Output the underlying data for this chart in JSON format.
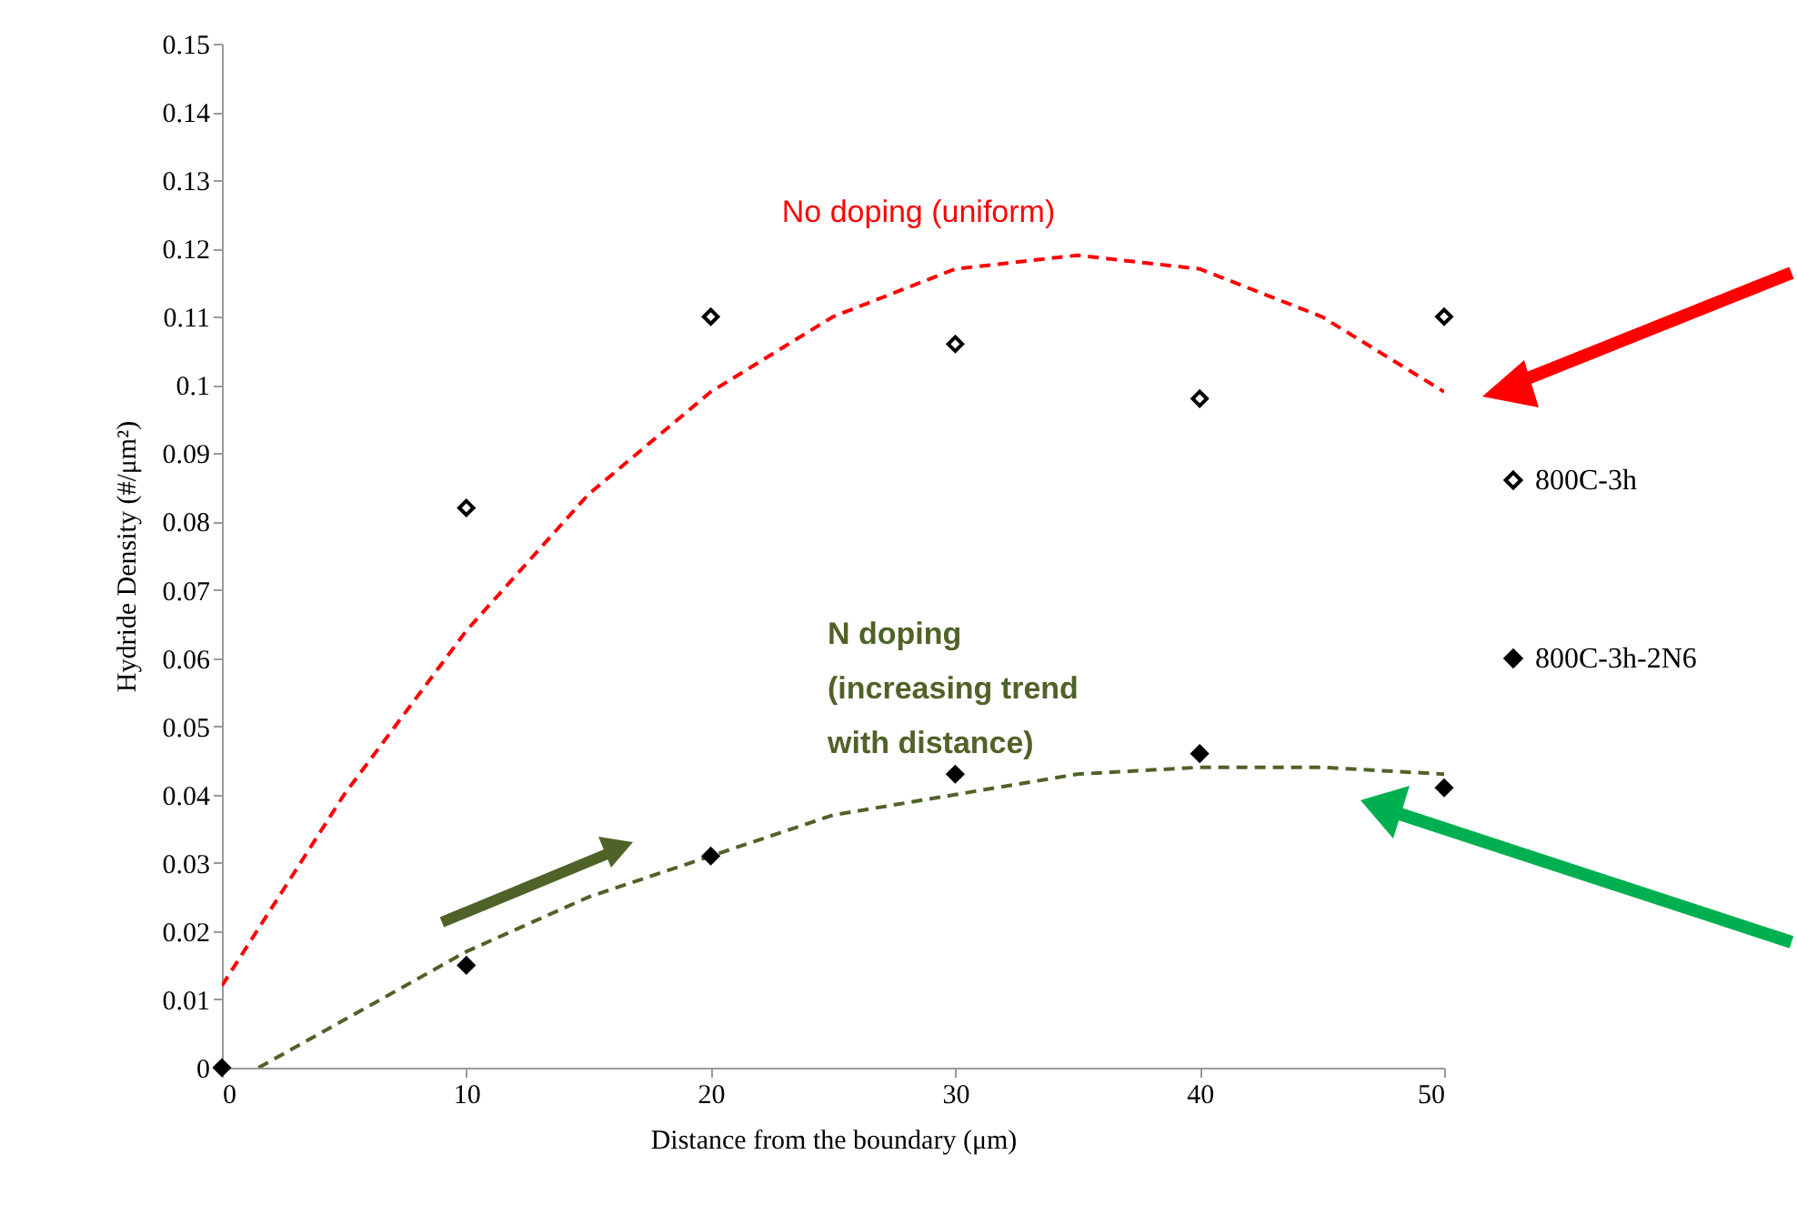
{
  "chart_data": {
    "type": "scatter",
    "xlabel": "Distance from the boundary (μm)",
    "ylabel": "Hydride Density  (#/μm²)",
    "xlim": [
      0,
      50
    ],
    "ylim": [
      0,
      0.15
    ],
    "xticks": [
      0,
      10,
      20,
      30,
      40,
      50
    ],
    "yticks": [
      0,
      0.01,
      0.02,
      0.03,
      0.04,
      0.05,
      0.06,
      0.07,
      0.08,
      0.09,
      0.1,
      0.11,
      0.12,
      0.13,
      0.14,
      0.15
    ],
    "grid": false,
    "legend": "right",
    "series": [
      {
        "name": "800C-3h",
        "color": "#000000",
        "marker": "diamond",
        "x": [
          10,
          20,
          30,
          40,
          50
        ],
        "values": [
          0.082,
          0.11,
          0.106,
          0.098,
          0.11
        ]
      },
      {
        "name": "800C-3h-2N6",
        "color": "#000000",
        "marker": "diamond",
        "x": [
          0,
          10,
          20,
          30,
          40,
          50
        ],
        "values": [
          0,
          0.015,
          0.031,
          0.043,
          0.046,
          0.041
        ]
      },
      {
        "type": "line",
        "color": "#ff0000",
        "line_style": "dashed",
        "x": [
          0,
          5,
          10,
          15,
          20,
          25,
          30,
          35,
          40,
          45,
          50
        ],
        "values": [
          0.012,
          0.04,
          0.064,
          0.084,
          0.099,
          0.11,
          0.117,
          0.119,
          0.117,
          0.11,
          0.099
        ]
      },
      {
        "type": "line",
        "color": "#4f6228",
        "line_style": "dashed",
        "x": [
          1.5,
          5,
          10,
          15,
          20,
          25,
          30,
          35,
          40,
          45,
          50
        ],
        "values": [
          0,
          0.007,
          0.017,
          0.025,
          0.031,
          0.037,
          0.04,
          0.043,
          0.044,
          0.044,
          0.043
        ]
      }
    ],
    "annotations": [
      "No doping (uniform)",
      "N doping\n(increasing trend\nwith distance)"
    ]
  }
}
